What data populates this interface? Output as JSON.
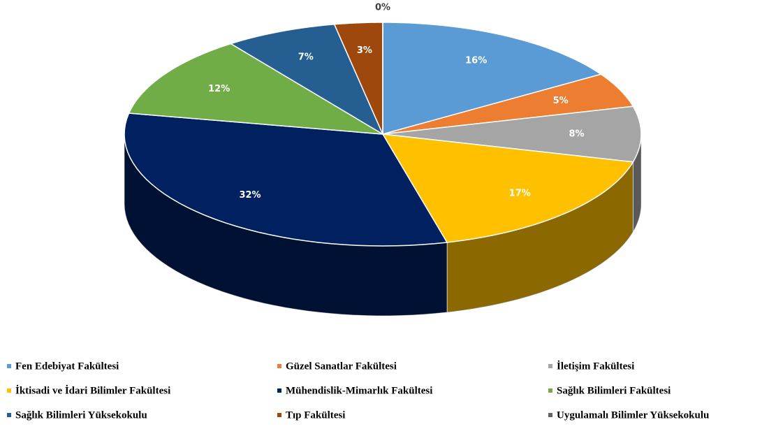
{
  "chart_data": {
    "type": "pie",
    "categories": [
      "Fen Edebiyat Fakültesi",
      "Güzel Sanatlar Fakültesi",
      "İletişim Fakültesi",
      "İktisadi ve İdari Bilimler Fakültesi",
      "Mühendislik-Mimarlık Fakültesi",
      "Sağlık Bilimleri Fakültesi",
      "Sağlık Bilimleri Yüksekokulu",
      "Tıp Fakültesi",
      "Uygulamalı Bilimler Yüksekokulu"
    ],
    "values": [
      16,
      5,
      8,
      17,
      32,
      12,
      7,
      3,
      0
    ],
    "value_labels": [
      "16%",
      "5%",
      "8%",
      "17%",
      "32%",
      "12%",
      "7%",
      "3%",
      "0%"
    ],
    "colors": [
      "#5b9bd5",
      "#ed7d31",
      "#a5a5a5",
      "#ffc000",
      "#002060",
      "#70ad47",
      "#255e91",
      "#9e480e",
      "#636363"
    ],
    "legend": "bottom"
  }
}
